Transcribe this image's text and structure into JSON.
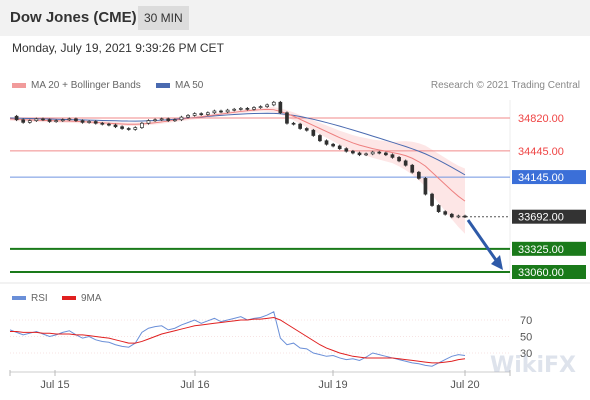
{
  "header": {
    "title": "Dow Jones (CME)",
    "interval": "30 MIN"
  },
  "datetime": "Monday, July 19, 2021 9:39:26 PM CET",
  "legend": {
    "bollinger": "MA 20 + Bollinger Bands",
    "ma50": "MA 50",
    "credit": "Research © 2021 Trading Central"
  },
  "rsi_legend": {
    "rsi": "RSI",
    "ma9": "9MA"
  },
  "watermark": "WikiFX",
  "colors": {
    "resistance": "#ef4444",
    "pivot": "#3b6fd8",
    "support": "#1a7a1a",
    "price_tag": "#333333",
    "bands": "#fde2e2",
    "ma50": "#4a6ab0",
    "arrow": "#2e5aa8"
  },
  "chart_data": [
    {
      "type": "line",
      "title": "",
      "x_ticks": [
        "Jul 15",
        "Jul 16",
        "Jul 19",
        "Jul 20"
      ],
      "y_range": [
        33000,
        35000
      ],
      "levels": [
        {
          "value": 34820.0,
          "label": "34820.00",
          "kind": "resistance"
        },
        {
          "value": 34445.0,
          "label": "34445.00",
          "kind": "resistance"
        },
        {
          "value": 34145.0,
          "label": "34145.00",
          "kind": "pivot"
        },
        {
          "value": 33692.0,
          "label": "33692.00",
          "kind": "last"
        },
        {
          "value": 33325.0,
          "label": "33325.00",
          "kind": "support"
        },
        {
          "value": 33060.0,
          "label": "33060.00",
          "kind": "support"
        }
      ],
      "series": [
        {
          "name": "Price",
          "values": [
            34840,
            34800,
            34770,
            34790,
            34810,
            34800,
            34780,
            34790,
            34800,
            34810,
            34790,
            34770,
            34780,
            34760,
            34750,
            34740,
            34720,
            34700,
            34690,
            34710,
            34760,
            34790,
            34800,
            34810,
            34790,
            34800,
            34830,
            34850,
            34870,
            34860,
            34880,
            34900,
            34890,
            34910,
            34920,
            34930,
            34920,
            34940,
            34950,
            34970,
            35000,
            34880,
            34760,
            34750,
            34700,
            34680,
            34620,
            34560,
            34520,
            34500,
            34470,
            34440,
            34420,
            34400,
            34410,
            34430,
            34420,
            34400,
            34370,
            34330,
            34280,
            34200,
            34130,
            33950,
            33820,
            33750,
            33720,
            33690,
            33700,
            33692
          ]
        },
        {
          "name": "MA 20",
          "values": [
            34810,
            34805,
            34800,
            34798,
            34795,
            34793,
            34790,
            34788,
            34786,
            34784,
            34782,
            34778,
            34774,
            34770,
            34765,
            34760,
            34756,
            34752,
            34748,
            34748,
            34752,
            34758,
            34766,
            34775,
            34785,
            34795,
            34805,
            34815,
            34825,
            34835,
            34845,
            34855,
            34865,
            34875,
            34885,
            34895,
            34903,
            34910,
            34915,
            34918,
            34915,
            34895,
            34870,
            34840,
            34805,
            34770,
            34735,
            34700,
            34665,
            34630,
            34595,
            34565,
            34535,
            34510,
            34490,
            34470,
            34455,
            34440,
            34425,
            34410,
            34390,
            34360,
            34320,
            34270,
            34200,
            34130,
            34060,
            33990,
            33925,
            33870
          ]
        },
        {
          "name": "MA 50",
          "values": [
            34820,
            34818,
            34816,
            34814,
            34812,
            34810,
            34808,
            34806,
            34804,
            34802,
            34800,
            34798,
            34796,
            34794,
            34792,
            34790,
            34788,
            34786,
            34785,
            34785,
            34786,
            34788,
            34791,
            34795,
            34800,
            34806,
            34812,
            34818,
            34825,
            34832,
            34838,
            34844,
            34850,
            34855,
            34860,
            34864,
            34868,
            34871,
            34873,
            34874,
            34873,
            34868,
            34860,
            34850,
            34837,
            34822,
            34805,
            34787,
            34768,
            34748,
            34727,
            34705,
            34683,
            34660,
            34637,
            34613,
            34590,
            34566,
            34542,
            34518,
            34494,
            34468,
            34440,
            34410,
            34375,
            34338,
            34298,
            34256,
            34213,
            34170
          ]
        },
        {
          "name": "RSI",
          "values": [
            58,
            55,
            52,
            54,
            56,
            53,
            50,
            52,
            55,
            57,
            52,
            48,
            50,
            46,
            44,
            43,
            40,
            38,
            37,
            42,
            55,
            60,
            62,
            63,
            58,
            60,
            64,
            67,
            70,
            66,
            69,
            72,
            68,
            70,
            72,
            74,
            70,
            72,
            73,
            76,
            80,
            48,
            40,
            42,
            36,
            35,
            30,
            28,
            26,
            27,
            24,
            22,
            23,
            21,
            25,
            30,
            28,
            26,
            24,
            22,
            20,
            18,
            17,
            15,
            14,
            18,
            22,
            26,
            28,
            27
          ]
        },
        {
          "name": "9MA",
          "values": [
            56,
            56,
            55,
            55,
            55,
            54,
            54,
            53,
            53,
            53,
            52,
            52,
            51,
            50,
            49,
            48,
            46,
            44,
            42,
            42,
            44,
            47,
            50,
            53,
            55,
            57,
            59,
            61,
            63,
            64,
            65,
            66,
            67,
            68,
            69,
            70,
            70,
            71,
            71,
            72,
            73,
            70,
            65,
            60,
            55,
            50,
            45,
            40,
            36,
            33,
            30,
            28,
            26,
            25,
            24,
            24,
            24,
            24,
            24,
            23,
            22,
            21,
            20,
            19,
            18,
            18,
            19,
            20,
            22,
            23
          ]
        }
      ]
    },
    {
      "type": "line",
      "title": "",
      "y_ticks": [
        70,
        50,
        30
      ],
      "y_range": [
        10,
        85
      ]
    }
  ]
}
